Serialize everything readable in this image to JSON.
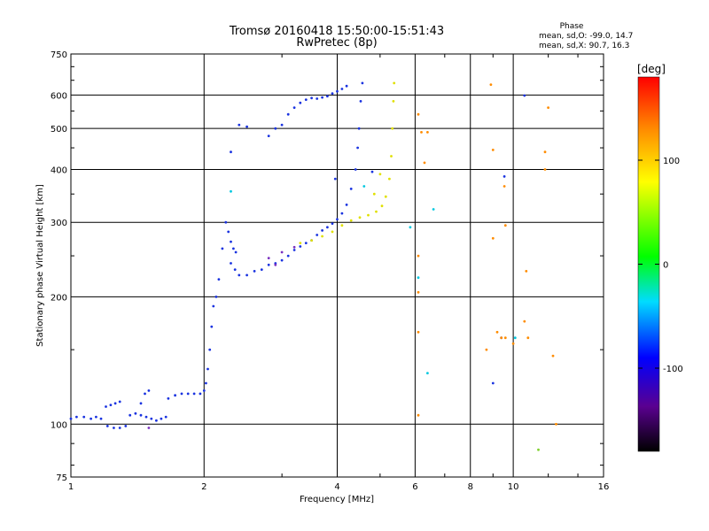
{
  "chart_data": {
    "type": "scatter",
    "title": "Tromsø 20160418 15:50:00-15:51:43",
    "subtitle": "RwPretec (8p)",
    "xlabel": "Frequency [MHz]",
    "ylabel": "Stationary phase Virtual Height [km]",
    "x_scale": "log",
    "y_scale": "log",
    "xlim": [
      1,
      16
    ],
    "ylim": [
      75,
      750
    ],
    "x_ticks": [
      1,
      2,
      4,
      6,
      8,
      10,
      16
    ],
    "x_tick_labels": [
      "1",
      "2",
      "4",
      "6",
      "8",
      "10",
      "16"
    ],
    "y_ticks": [
      75,
      100,
      200,
      300,
      400,
      500,
      600,
      750
    ],
    "y_tick_labels": [
      "75",
      "100",
      "200",
      "300",
      "400",
      "500",
      "600",
      "750"
    ],
    "grid": true,
    "stats": {
      "heading": "Phase",
      "line_o": "mean, sd,O: -99.0, 14.7",
      "line_x": "mean, sd,X:  90.7, 16.3"
    },
    "colorbar": {
      "label": "[deg]",
      "range": [
        -180,
        180
      ],
      "ticks": [
        100,
        0,
        -100
      ],
      "tick_labels": [
        "100",
        "0",
        "-100"
      ]
    },
    "series": [
      {
        "color": "#1a33e0",
        "points": [
          [
            1.0,
            103
          ],
          [
            1.03,
            104
          ],
          [
            1.07,
            104
          ],
          [
            1.11,
            103
          ],
          [
            1.14,
            104
          ],
          [
            1.17,
            103
          ],
          [
            1.2,
            110
          ],
          [
            1.23,
            111
          ],
          [
            1.26,
            112
          ],
          [
            1.29,
            113
          ],
          [
            1.21,
            99
          ],
          [
            1.25,
            98
          ],
          [
            1.29,
            98
          ],
          [
            1.33,
            99
          ],
          [
            1.36,
            105
          ],
          [
            1.4,
            106
          ],
          [
            1.44,
            105
          ],
          [
            1.48,
            104
          ],
          [
            1.52,
            103
          ],
          [
            1.56,
            102
          ],
          [
            1.6,
            103
          ],
          [
            1.64,
            104
          ],
          [
            1.44,
            112
          ],
          [
            1.47,
            118
          ],
          [
            1.5,
            120
          ],
          [
            1.66,
            115
          ],
          [
            1.72,
            117
          ],
          [
            1.78,
            118
          ],
          [
            1.84,
            118
          ],
          [
            1.9,
            118
          ],
          [
            1.96,
            118
          ],
          [
            2.0,
            120
          ],
          [
            2.02,
            125
          ],
          [
            2.04,
            135
          ],
          [
            2.06,
            150
          ],
          [
            2.08,
            170
          ],
          [
            2.1,
            190
          ],
          [
            2.13,
            200
          ],
          [
            2.16,
            220
          ],
          [
            2.2,
            260
          ],
          [
            2.24,
            300
          ],
          [
            2.27,
            285
          ],
          [
            2.3,
            270
          ],
          [
            2.33,
            260
          ],
          [
            2.36,
            255
          ],
          [
            2.3,
            240
          ],
          [
            2.35,
            232
          ],
          [
            2.4,
            225
          ],
          [
            2.5,
            225
          ],
          [
            2.6,
            230
          ],
          [
            2.7,
            232
          ],
          [
            2.8,
            238
          ],
          [
            2.9,
            240
          ],
          [
            3.0,
            244
          ],
          [
            3.1,
            250
          ],
          [
            3.2,
            258
          ],
          [
            3.3,
            263
          ],
          [
            3.4,
            268
          ],
          [
            3.5,
            272
          ],
          [
            3.6,
            280
          ],
          [
            3.7,
            287
          ],
          [
            3.8,
            292
          ],
          [
            3.9,
            298
          ],
          [
            4.0,
            305
          ],
          [
            4.1,
            315
          ],
          [
            4.2,
            330
          ],
          [
            4.3,
            360
          ],
          [
            4.4,
            400
          ],
          [
            4.45,
            450
          ],
          [
            4.48,
            500
          ],
          [
            4.52,
            580
          ],
          [
            4.56,
            640
          ],
          [
            2.3,
            440
          ],
          [
            2.4,
            510
          ],
          [
            2.5,
            505
          ],
          [
            2.8,
            480
          ],
          [
            2.9,
            500
          ],
          [
            3.0,
            510
          ],
          [
            3.1,
            540
          ],
          [
            3.2,
            560
          ],
          [
            3.3,
            575
          ],
          [
            3.4,
            585
          ],
          [
            3.5,
            590
          ],
          [
            3.6,
            588
          ],
          [
            3.7,
            592
          ],
          [
            3.8,
            596
          ],
          [
            3.9,
            605
          ],
          [
            4.0,
            612
          ],
          [
            4.1,
            620
          ],
          [
            4.2,
            630
          ],
          [
            3.96,
            380
          ],
          [
            4.8,
            395
          ],
          [
            9.55,
            385
          ],
          [
            10.6,
            598
          ],
          [
            9.0,
            125
          ],
          [
            9.4,
            160
          ]
        ]
      },
      {
        "color": "#e0e000",
        "points": [
          [
            3.3,
            268
          ],
          [
            3.5,
            272
          ],
          [
            3.7,
            278
          ],
          [
            3.9,
            285
          ],
          [
            4.1,
            295
          ],
          [
            4.3,
            303
          ],
          [
            4.5,
            308
          ],
          [
            4.7,
            312
          ],
          [
            4.9,
            318
          ],
          [
            5.05,
            328
          ],
          [
            5.15,
            345
          ],
          [
            5.25,
            380
          ],
          [
            5.3,
            430
          ],
          [
            5.33,
            500
          ],
          [
            5.36,
            580
          ],
          [
            5.38,
            640
          ],
          [
            5.0,
            390
          ],
          [
            4.85,
            350
          ]
        ]
      },
      {
        "color": "#ff8c00",
        "points": [
          [
            6.1,
            540
          ],
          [
            6.2,
            490
          ],
          [
            6.4,
            490
          ],
          [
            6.3,
            415
          ],
          [
            6.1,
            250
          ],
          [
            6.1,
            205
          ],
          [
            6.1,
            165
          ],
          [
            6.1,
            105
          ],
          [
            8.9,
            635
          ],
          [
            9.0,
            445
          ],
          [
            9.0,
            275
          ],
          [
            9.2,
            165
          ],
          [
            9.4,
            160
          ],
          [
            9.6,
            160
          ],
          [
            10.0,
            155
          ],
          [
            10.6,
            175
          ],
          [
            10.8,
            160
          ],
          [
            12.0,
            560
          ],
          [
            11.8,
            440
          ],
          [
            11.8,
            400
          ],
          [
            12.3,
            145
          ],
          [
            12.5,
            100
          ],
          [
            9.55,
            365
          ],
          [
            9.6,
            295
          ],
          [
            8.7,
            150
          ],
          [
            10.7,
            230
          ]
        ]
      },
      {
        "color": "#00c8e0",
        "points": [
          [
            2.3,
            355
          ],
          [
            4.6,
            365
          ],
          [
            5.85,
            292
          ],
          [
            6.1,
            222
          ],
          [
            6.4,
            132
          ],
          [
            6.6,
            322
          ],
          [
            10.1,
            160
          ]
        ]
      },
      {
        "color": "#7a30c0",
        "points": [
          [
            2.8,
            247
          ],
          [
            3.0,
            255
          ],
          [
            2.9,
            238
          ],
          [
            3.2,
            262
          ],
          [
            1.5,
            98
          ]
        ]
      },
      {
        "color": "#80d030",
        "points": [
          [
            11.4,
            87
          ]
        ]
      }
    ]
  }
}
